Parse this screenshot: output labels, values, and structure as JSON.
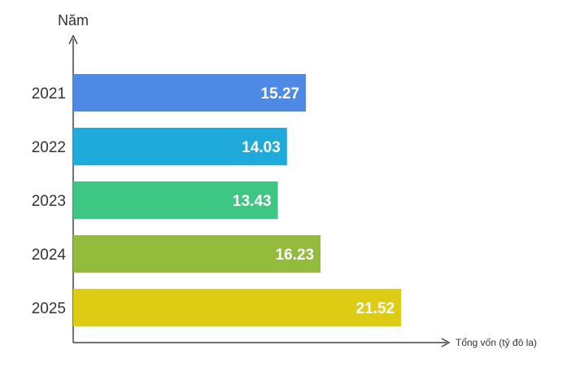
{
  "chart_data": {
    "type": "bar",
    "orientation": "horizontal",
    "title": "",
    "ylabel": "Năm",
    "xlabel": "Tổng vốn (tỷ đô la)",
    "categories": [
      "2021",
      "2022",
      "2023",
      "2024",
      "2025"
    ],
    "values": [
      15.27,
      14.03,
      13.43,
      16.23,
      21.52
    ],
    "value_labels": [
      "15.27",
      "14.03",
      "13.43",
      "16.23",
      "21.52"
    ],
    "colors": [
      "#4E89E6",
      "#1FAADB",
      "#3DC783",
      "#93BB3C",
      "#DECC14"
    ],
    "xlim": [
      0,
      24.5
    ],
    "grid": false,
    "legend": "none"
  }
}
